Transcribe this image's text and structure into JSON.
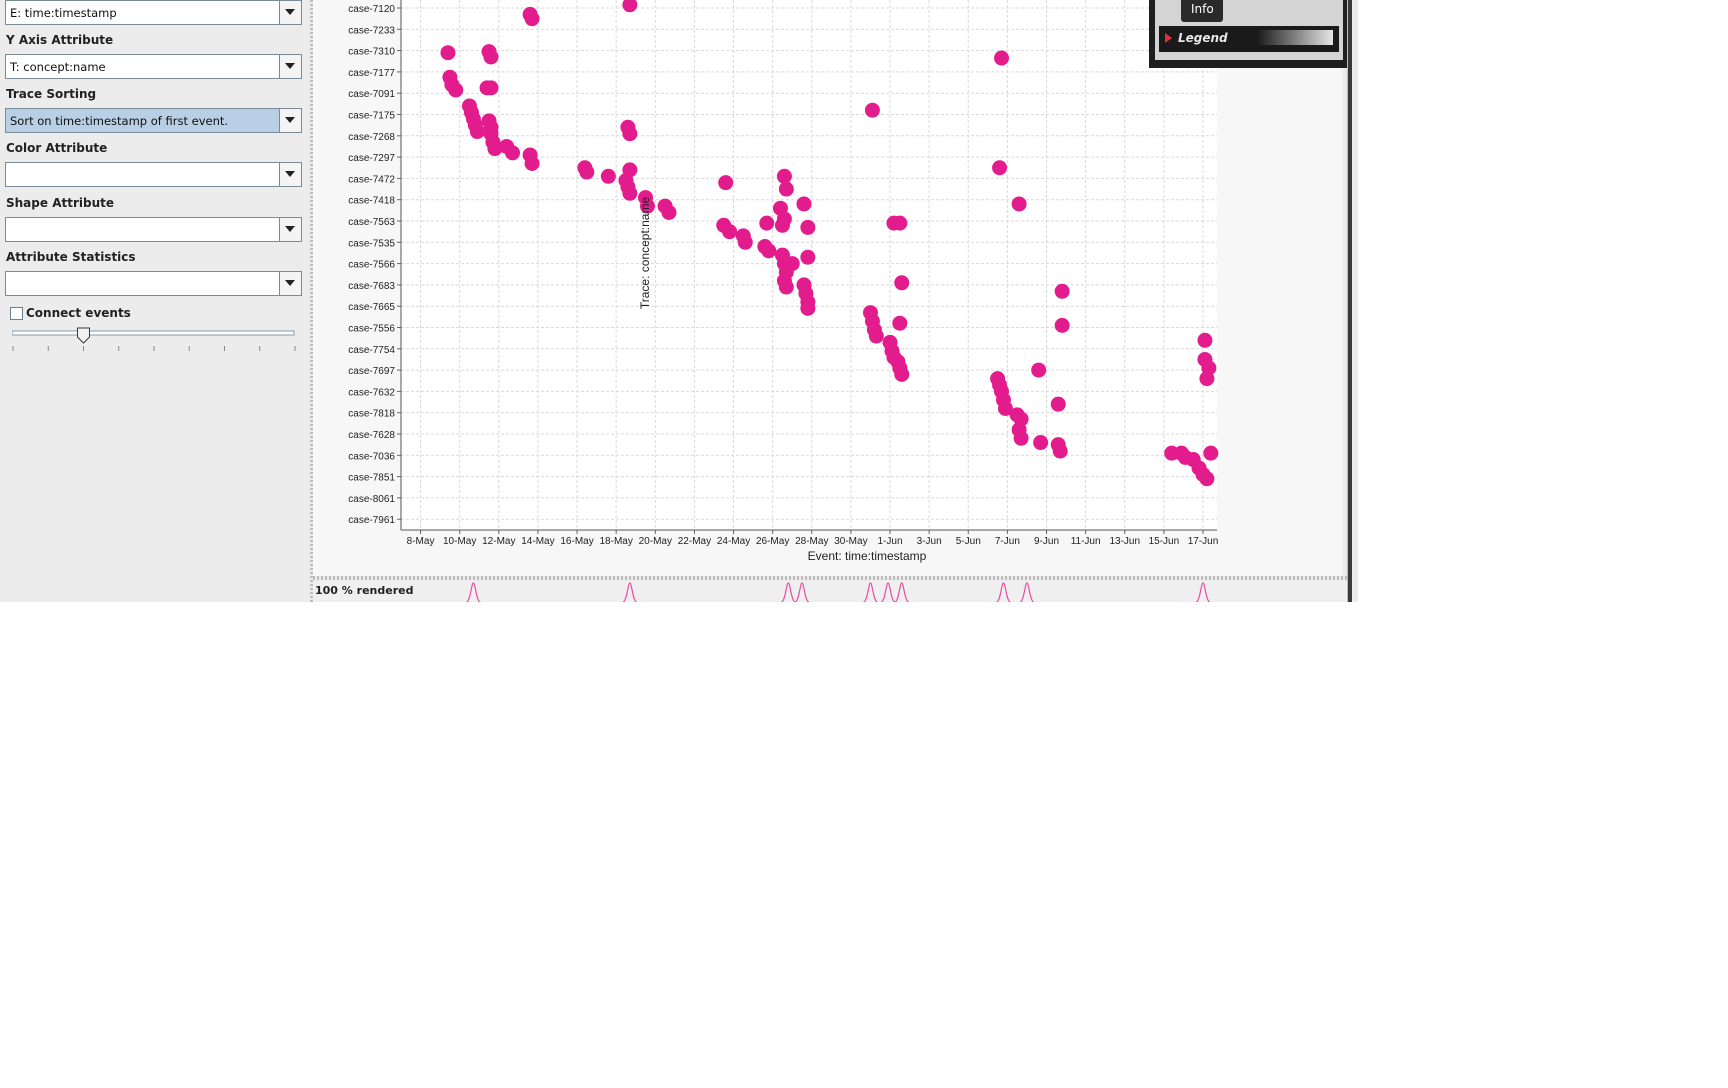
{
  "sidebar": {
    "x_combo_value": "E: time:timestamp",
    "y_axis": {
      "label": "Y Axis Attribute",
      "value": "T: concept:name"
    },
    "trace_sorting": {
      "label": "Trace Sorting",
      "value": "Sort on time:timestamp of first event."
    },
    "color_attr": {
      "label": "Color Attribute",
      "value": ""
    },
    "shape_attr": {
      "label": "Shape Attribute",
      "value": ""
    },
    "attr_stats": {
      "label": "Attribute Statistics",
      "value": ""
    },
    "connect_events": {
      "label": "Connect events",
      "checked": false
    },
    "slider": {
      "value_fraction": 0.25
    }
  },
  "info_panel": {
    "tab": "Info",
    "legend_label": "Legend"
  },
  "status": {
    "rendered_text": "100 % rendered"
  },
  "colors": {
    "dot": "#e31c8d",
    "grid": "#d9d9d9",
    "density": "#e64fa8"
  },
  "chart_data": {
    "type": "scatter",
    "xlabel": "Event: time:timestamp",
    "ylabel": "Trace: concept:name",
    "x_ticks": [
      "8-May",
      "10-May",
      "12-May",
      "14-May",
      "16-May",
      "18-May",
      "20-May",
      "22-May",
      "24-May",
      "26-May",
      "28-May",
      "30-May",
      "1-Jun",
      "3-Jun",
      "5-Jun",
      "7-Jun",
      "9-Jun",
      "11-Jun",
      "13-Jun",
      "15-Jun",
      "17-Jun"
    ],
    "y_ticks": [
      "case-7120",
      "case-7233",
      "case-7310",
      "case-7177",
      "case-7091",
      "case-7175",
      "case-7268",
      "case-7297",
      "case-7472",
      "case-7418",
      "case-7563",
      "case-7535",
      "case-7566",
      "case-7683",
      "case-7665",
      "case-7556",
      "case-7754",
      "case-7697",
      "case-7632",
      "case-7818",
      "case-7628",
      "case-7036",
      "case-7851",
      "case-8061",
      "case-7961"
    ],
    "xlim": [
      "7-May",
      "17-Jun"
    ],
    "grid": true,
    "points": [
      {
        "x": "13.6-May",
        "y": 0.3
      },
      {
        "x": "13.7-May",
        "y": 0.5
      },
      {
        "x": "18.6-May",
        "y": -0.8
      },
      {
        "x": "18.7-May",
        "y": -0.15
      },
      {
        "x": "27.5-May",
        "y": -1.15
      },
      {
        "x": "9.4-May",
        "y": 2.1
      },
      {
        "x": "11.5-May",
        "y": 2.05
      },
      {
        "x": "11.6-May",
        "y": 2.3
      },
      {
        "x": "6.7-Jun",
        "y": 2.35
      },
      {
        "x": "9.5-May",
        "y": 3.25
      },
      {
        "x": "9.6-May",
        "y": 3.6
      },
      {
        "x": "9.8-May",
        "y": 3.85
      },
      {
        "x": "11.4-May",
        "y": 3.75
      },
      {
        "x": "11.6-May",
        "y": 3.75
      },
      {
        "x": "10.5-May",
        "y": 4.6
      },
      {
        "x": "10.6-May",
        "y": 4.9
      },
      {
        "x": "10.7-May",
        "y": 5.2
      },
      {
        "x": "10.8-May",
        "y": 5.5
      },
      {
        "x": "10.9-May",
        "y": 5.8
      },
      {
        "x": "11.5-May",
        "y": 5.3
      },
      {
        "x": "11.6-May",
        "y": 5.6
      },
      {
        "x": "11.6-May",
        "y": 5.9
      },
      {
        "x": "11.7-May",
        "y": 6.3
      },
      {
        "x": "11.8-May",
        "y": 6.6
      },
      {
        "x": "12.4-May",
        "y": 6.5
      },
      {
        "x": "12.7-May",
        "y": 6.8
      },
      {
        "x": "13.6-May",
        "y": 6.9
      },
      {
        "x": "13.7-May",
        "y": 7.3
      },
      {
        "x": "16.4-May",
        "y": 7.5
      },
      {
        "x": "16.5-May",
        "y": 7.7
      },
      {
        "x": "17.6-May",
        "y": 7.9
      },
      {
        "x": "18.5-May",
        "y": 8.1
      },
      {
        "x": "18.6-May",
        "y": 8.4
      },
      {
        "x": "18.7-May",
        "y": 8.7
      },
      {
        "x": "19.5-May",
        "y": 8.9
      },
      {
        "x": "19.6-May",
        "y": 9.3
      },
      {
        "x": "20.5-May",
        "y": 9.3
      },
      {
        "x": "20.7-May",
        "y": 9.6
      },
      {
        "x": "18.7-May",
        "y": 5.9
      },
      {
        "x": "18.6-May",
        "y": 5.6
      },
      {
        "x": "18.7-May",
        "y": 7.6
      },
      {
        "x": "23.6-May",
        "y": 8.2
      },
      {
        "x": "23.5-May",
        "y": 10.2
      },
      {
        "x": "23.8-May",
        "y": 10.5
      },
      {
        "x": "24.5-May",
        "y": 10.7
      },
      {
        "x": "24.6-May",
        "y": 11.0
      },
      {
        "x": "25.6-May",
        "y": 11.2
      },
      {
        "x": "25.8-May",
        "y": 11.4
      },
      {
        "x": "25.7-May",
        "y": 10.1
      },
      {
        "x": "26.5-May",
        "y": 10.2
      },
      {
        "x": "26.4-May",
        "y": 9.4
      },
      {
        "x": "26.6-May",
        "y": 7.9
      },
      {
        "x": "26.7-May",
        "y": 8.5
      },
      {
        "x": "26.6-May",
        "y": 9.9
      },
      {
        "x": "26.5-May",
        "y": 11.6
      },
      {
        "x": "26.6-May",
        "y": 12.0
      },
      {
        "x": "26.7-May",
        "y": 12.4
      },
      {
        "x": "26.6-May",
        "y": 12.8
      },
      {
        "x": "26.7-May",
        "y": 13.1
      },
      {
        "x": "27.0-May",
        "y": 12.0
      },
      {
        "x": "27.6-May",
        "y": 9.2
      },
      {
        "x": "27.8-May",
        "y": 10.3
      },
      {
        "x": "27.8-May",
        "y": 11.7
      },
      {
        "x": "27.6-May",
        "y": 13.0
      },
      {
        "x": "27.7-May",
        "y": 13.4
      },
      {
        "x": "27.8-May",
        "y": 13.8
      },
      {
        "x": "27.8-May",
        "y": 14.1
      },
      {
        "x": "31.1-May",
        "y": 4.8
      },
      {
        "x": "31.0-May",
        "y": 14.3
      },
      {
        "x": "31.1-May",
        "y": 14.7
      },
      {
        "x": "31.2-May",
        "y": 15.1
      },
      {
        "x": "31.3-May",
        "y": 15.4
      },
      {
        "x": "32.0-May",
        "y": 15.7
      },
      {
        "x": "32.1-May",
        "y": 16.1
      },
      {
        "x": "32.2-May",
        "y": 16.4
      },
      {
        "x": "1.2-Jun",
        "y": 10.1
      },
      {
        "x": "1.5-Jun",
        "y": 10.1
      },
      {
        "x": "1.6-Jun",
        "y": 12.9
      },
      {
        "x": "1.5-Jun",
        "y": 14.8
      },
      {
        "x": "1.4-Jun",
        "y": 16.6
      },
      {
        "x": "1.5-Jun",
        "y": 16.9
      },
      {
        "x": "1.6-Jun",
        "y": 17.2
      },
      {
        "x": "6.6-Jun",
        "y": 7.5
      },
      {
        "x": "7.6-Jun",
        "y": 9.2
      },
      {
        "x": "6.5-Jun",
        "y": 17.4
      },
      {
        "x": "6.6-Jun",
        "y": 17.7
      },
      {
        "x": "6.7-Jun",
        "y": 18.0
      },
      {
        "x": "6.8-Jun",
        "y": 18.4
      },
      {
        "x": "6.9-Jun",
        "y": 18.8
      },
      {
        "x": "7.5-Jun",
        "y": 19.1
      },
      {
        "x": "7.7-Jun",
        "y": 19.3
      },
      {
        "x": "7.6-Jun",
        "y": 19.8
      },
      {
        "x": "7.7-Jun",
        "y": 20.2
      },
      {
        "x": "8.6-Jun",
        "y": 17.0
      },
      {
        "x": "8.7-Jun",
        "y": 20.4
      },
      {
        "x": "9.6-Jun",
        "y": 18.6
      },
      {
        "x": "9.6-Jun",
        "y": 20.5
      },
      {
        "x": "9.7-Jun",
        "y": 20.8
      },
      {
        "x": "9.8-Jun",
        "y": 13.3
      },
      {
        "x": "9.8-Jun",
        "y": 14.9
      },
      {
        "x": "15.4-Jun",
        "y": 20.9
      },
      {
        "x": "15.9-Jun",
        "y": 20.9
      },
      {
        "x": "16.1-Jun",
        "y": 21.1
      },
      {
        "x": "16.5-Jun",
        "y": 21.2
      },
      {
        "x": "16.8-Jun",
        "y": 21.6
      },
      {
        "x": "17.0-Jun",
        "y": 21.9
      },
      {
        "x": "17.2-Jun",
        "y": 22.1
      },
      {
        "x": "17.4-Jun",
        "y": 20.9
      },
      {
        "x": "17.1-Jun",
        "y": 15.6
      },
      {
        "x": "17.1-Jun",
        "y": 16.5
      },
      {
        "x": "17.3-Jun",
        "y": 16.9
      },
      {
        "x": "17.2-Jun",
        "y": 17.4
      }
    ],
    "density_peaks_x": [
      "10.7-May",
      "18.7-May",
      "26.8-May",
      "27.5-May",
      "31.0-May",
      "31.9-May",
      "1.6-Jun",
      "6.8-Jun",
      "8.0-Jun",
      "17.0-Jun"
    ]
  }
}
